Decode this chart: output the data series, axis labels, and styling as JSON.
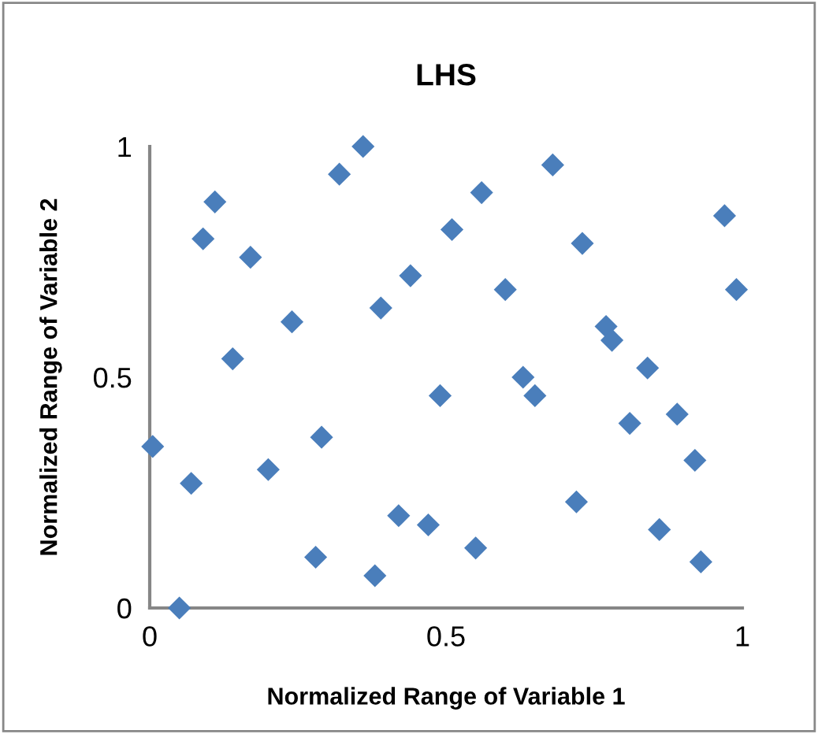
{
  "chart_data": {
    "type": "scatter",
    "title": "LHS",
    "xlabel": "Normalized Range of Variable 1",
    "ylabel": "Normalized Range of Variable 2",
    "x": [
      0.005,
      0.07,
      0.05,
      0.09,
      0.11,
      0.17,
      0.14,
      0.24,
      0.2,
      0.29,
      0.28,
      0.32,
      0.36,
      0.39,
      0.38,
      0.44,
      0.42,
      0.47,
      0.49,
      0.51,
      0.56,
      0.55,
      0.6,
      0.63,
      0.65,
      0.68,
      0.73,
      0.72,
      0.77,
      0.78,
      0.84,
      0.81,
      0.89,
      0.92,
      0.86,
      0.93,
      0.97,
      0.99
    ],
    "values": [
      0.35,
      0.27,
      0.0,
      0.8,
      0.88,
      0.76,
      0.54,
      0.62,
      0.3,
      0.37,
      0.11,
      0.94,
      1.0,
      0.65,
      0.07,
      0.72,
      0.2,
      0.18,
      0.46,
      0.82,
      0.9,
      0.13,
      0.69,
      0.5,
      0.46,
      0.96,
      0.79,
      0.23,
      0.61,
      0.58,
      0.52,
      0.4,
      0.42,
      0.32,
      0.17,
      0.1,
      0.85,
      0.69
    ],
    "color": "#4a7ebb",
    "marker": "diamond",
    "xlim": [
      0,
      1
    ],
    "ylim": [
      0,
      1
    ],
    "xticks": [
      0,
      0.5,
      1
    ],
    "yticks": [
      0,
      0.5,
      1
    ],
    "grid": false,
    "legend": false
  }
}
